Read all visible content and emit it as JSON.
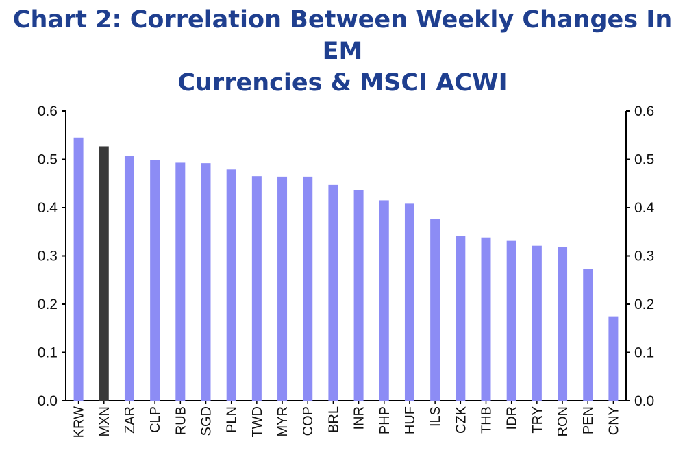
{
  "chart_data": {
    "type": "bar",
    "title_lines": [
      "Chart 2: Correlation Between Weekly Changes In EM",
      "Currencies & MSCI ACWI"
    ],
    "categories": [
      "KRW",
      "MXN",
      "ZAR",
      "CLP",
      "RUB",
      "SGD",
      "PLN",
      "TWD",
      "MYR",
      "COP",
      "BRL",
      "INR",
      "PHP",
      "HUF",
      "ILS",
      "CZK",
      "THB",
      "IDR",
      "TRY",
      "RON",
      "PEN",
      "CNY"
    ],
    "values": [
      0.545,
      0.527,
      0.507,
      0.499,
      0.493,
      0.492,
      0.479,
      0.465,
      0.464,
      0.464,
      0.447,
      0.436,
      0.415,
      0.408,
      0.376,
      0.341,
      0.338,
      0.331,
      0.321,
      0.318,
      0.273,
      0.175
    ],
    "highlight": "MXN",
    "ylim": [
      0,
      0.6
    ],
    "yticks": [
      "0.0",
      "0.1",
      "0.2",
      "0.3",
      "0.4",
      "0.5",
      "0.6"
    ],
    "dual_y_axis": true,
    "grid": false,
    "colors": {
      "bar": "#8c8cf5",
      "highlight": "#3a3a3a",
      "title": "#1f3f8f"
    }
  }
}
